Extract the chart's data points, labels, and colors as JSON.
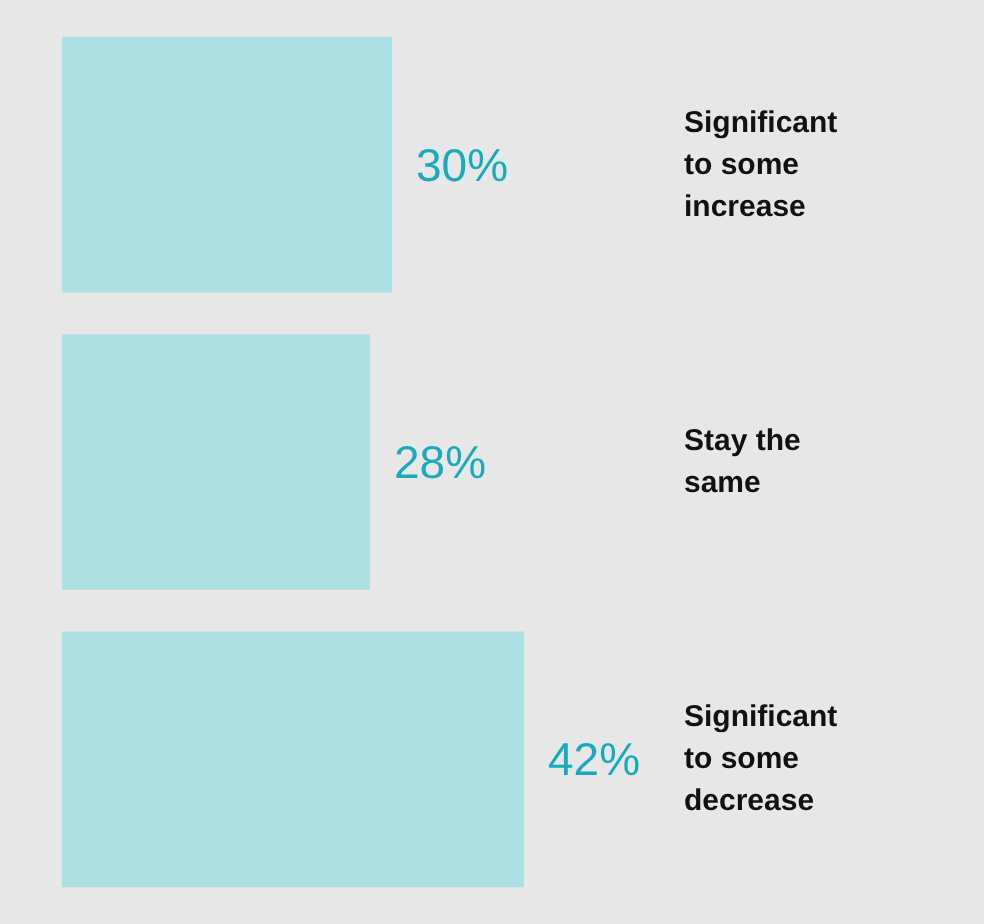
{
  "chart_data": {
    "type": "bar",
    "orientation": "horizontal",
    "categories": [
      "Significant to some increase",
      "Stay the same",
      "Significant to some decrease"
    ],
    "values": [
      30,
      28,
      42
    ],
    "value_labels": [
      "30%",
      "28%",
      "42%"
    ],
    "color": "#ade0e3"
  }
}
